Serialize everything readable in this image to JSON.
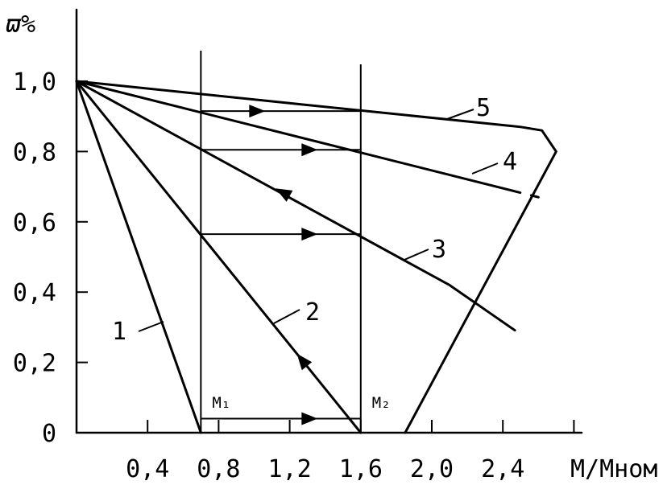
{
  "chart_data": {
    "type": "line",
    "y_axis": {
      "label": "ϖ%",
      "ticks": [
        {
          "value": 0,
          "text": "0"
        },
        {
          "value": 0.2,
          "text": "0,2"
        },
        {
          "value": 0.4,
          "text": "0,4"
        },
        {
          "value": 0.6,
          "text": "0,6"
        },
        {
          "value": 0.8,
          "text": "0,8"
        },
        {
          "value": 1.0,
          "text": "1,0"
        }
      ],
      "ylim": [
        0,
        1.0
      ]
    },
    "x_axis": {
      "label": "M/Mном",
      "ticks": [
        {
          "value": 0.4,
          "text": "0,4"
        },
        {
          "value": 0.8,
          "text": "0,8"
        },
        {
          "value": 1.2,
          "text": "1,2"
        },
        {
          "value": 1.6,
          "text": "1,6"
        },
        {
          "value": 2.0,
          "text": "2,0"
        },
        {
          "value": 2.4,
          "text": "2,4"
        }
      ],
      "xlim": [
        0,
        2.8
      ]
    },
    "vertical_lines": [
      {
        "label": "M₁",
        "x": 0.7
      },
      {
        "label": "M₂",
        "x": 1.6
      }
    ],
    "series": [
      {
        "name": "1",
        "points": [
          [
            0,
            1.0
          ],
          [
            0.7,
            0
          ]
        ]
      },
      {
        "name": "2",
        "points": [
          [
            0,
            1.0
          ],
          [
            1.6,
            0
          ]
        ]
      },
      {
        "name": "3",
        "points": [
          [
            0,
            1.0
          ],
          [
            2.1,
            0.42
          ],
          [
            2.5,
            0.28
          ]
        ],
        "dashed_from": 2.3
      },
      {
        "name": "4",
        "points": [
          [
            0,
            1.0
          ],
          [
            2.6,
            0.67
          ]
        ],
        "dashed_from": 2.3
      },
      {
        "name": "5",
        "points": [
          [
            0,
            1.0
          ],
          [
            2.5,
            0.87
          ],
          [
            2.62,
            0.86
          ],
          [
            2.7,
            0.8
          ],
          [
            1.85,
            0
          ]
        ]
      }
    ],
    "transitions": [
      {
        "from": [
          0.7,
          0.04
        ],
        "to": [
          1.6,
          0.04
        ],
        "direction": "right"
      },
      {
        "from": [
          0.7,
          0.565
        ],
        "to": [
          1.6,
          0.565
        ],
        "direction": "right"
      },
      {
        "from": [
          0.7,
          0.805
        ],
        "to": [
          1.6,
          0.805
        ],
        "direction": "right"
      },
      {
        "from": [
          0.7,
          0.915
        ],
        "to": [
          1.6,
          0.915
        ],
        "direction": "right"
      }
    ],
    "line_arrows": [
      {
        "series": "2",
        "at": [
          1.24,
          0.225
        ],
        "direction": "up-left"
      },
      {
        "series": "3",
        "at": [
          1.12,
          0.695
        ],
        "direction": "up-left"
      }
    ]
  }
}
